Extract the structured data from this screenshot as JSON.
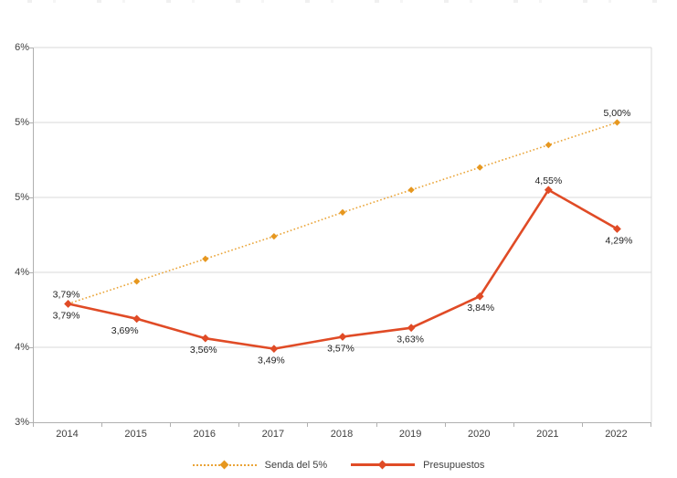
{
  "chart_data": {
    "type": "line",
    "title": "",
    "x": [
      "2014",
      "2015",
      "2016",
      "2017",
      "2018",
      "2019",
      "2020",
      "2021",
      "2022"
    ],
    "ylim": [
      3.0,
      5.5
    ],
    "ytick_interval": 0.5,
    "ytick_labels_bottom_to_top": [
      "3%",
      "4%",
      "4%",
      "5%",
      "5%",
      "6%"
    ],
    "grid": true,
    "legend_position": "bottom",
    "decimal_separator": ",",
    "series": [
      {
        "name": "Senda del 5%",
        "style": "dotted",
        "color": "#eaa437",
        "marker_color": "#e6971f",
        "values": [
          3.79,
          3.94,
          4.09,
          4.24,
          4.4,
          4.55,
          4.7,
          4.85,
          5.0
        ],
        "point_labels": [
          {
            "idx": 0,
            "text": "3,79%",
            "pos": "above",
            "dx": -2
          },
          {
            "idx": 8,
            "text": "5,00%",
            "pos": "above",
            "dx": 0
          }
        ]
      },
      {
        "name": "Presupuestos",
        "style": "solid",
        "color": "#e04b26",
        "marker_color": "#e04b26",
        "values": [
          3.79,
          3.69,
          3.56,
          3.49,
          3.57,
          3.63,
          3.84,
          4.55,
          4.29
        ],
        "point_labels": [
          {
            "idx": 0,
            "text": "3,79%",
            "pos": "below",
            "dx": -2
          },
          {
            "idx": 1,
            "text": "3,69%",
            "pos": "below",
            "dx": -13
          },
          {
            "idx": 2,
            "text": "3,56%",
            "pos": "below",
            "dx": -2
          },
          {
            "idx": 3,
            "text": "3,49%",
            "pos": "below",
            "dx": -3
          },
          {
            "idx": 4,
            "text": "3,57%",
            "pos": "below",
            "dx": -2
          },
          {
            "idx": 5,
            "text": "3,63%",
            "pos": "below",
            "dx": -1
          },
          {
            "idx": 6,
            "text": "3,84%",
            "pos": "below",
            "dx": 1
          },
          {
            "idx": 7,
            "text": "4,55%",
            "pos": "above",
            "dx": 0
          },
          {
            "idx": 8,
            "text": "4,29%",
            "pos": "below",
            "dx": 2
          }
        ]
      }
    ],
    "colors": {
      "gridline": "#d9d9d9",
      "axis_line": "#b0b0b0",
      "axis_text": "#3f3f3f",
      "data_label_text": "#212121",
      "background": "#ffffff"
    }
  },
  "legend": {
    "senda_label": "Senda del 5%",
    "presupuestos_label": "Presupuestos"
  }
}
